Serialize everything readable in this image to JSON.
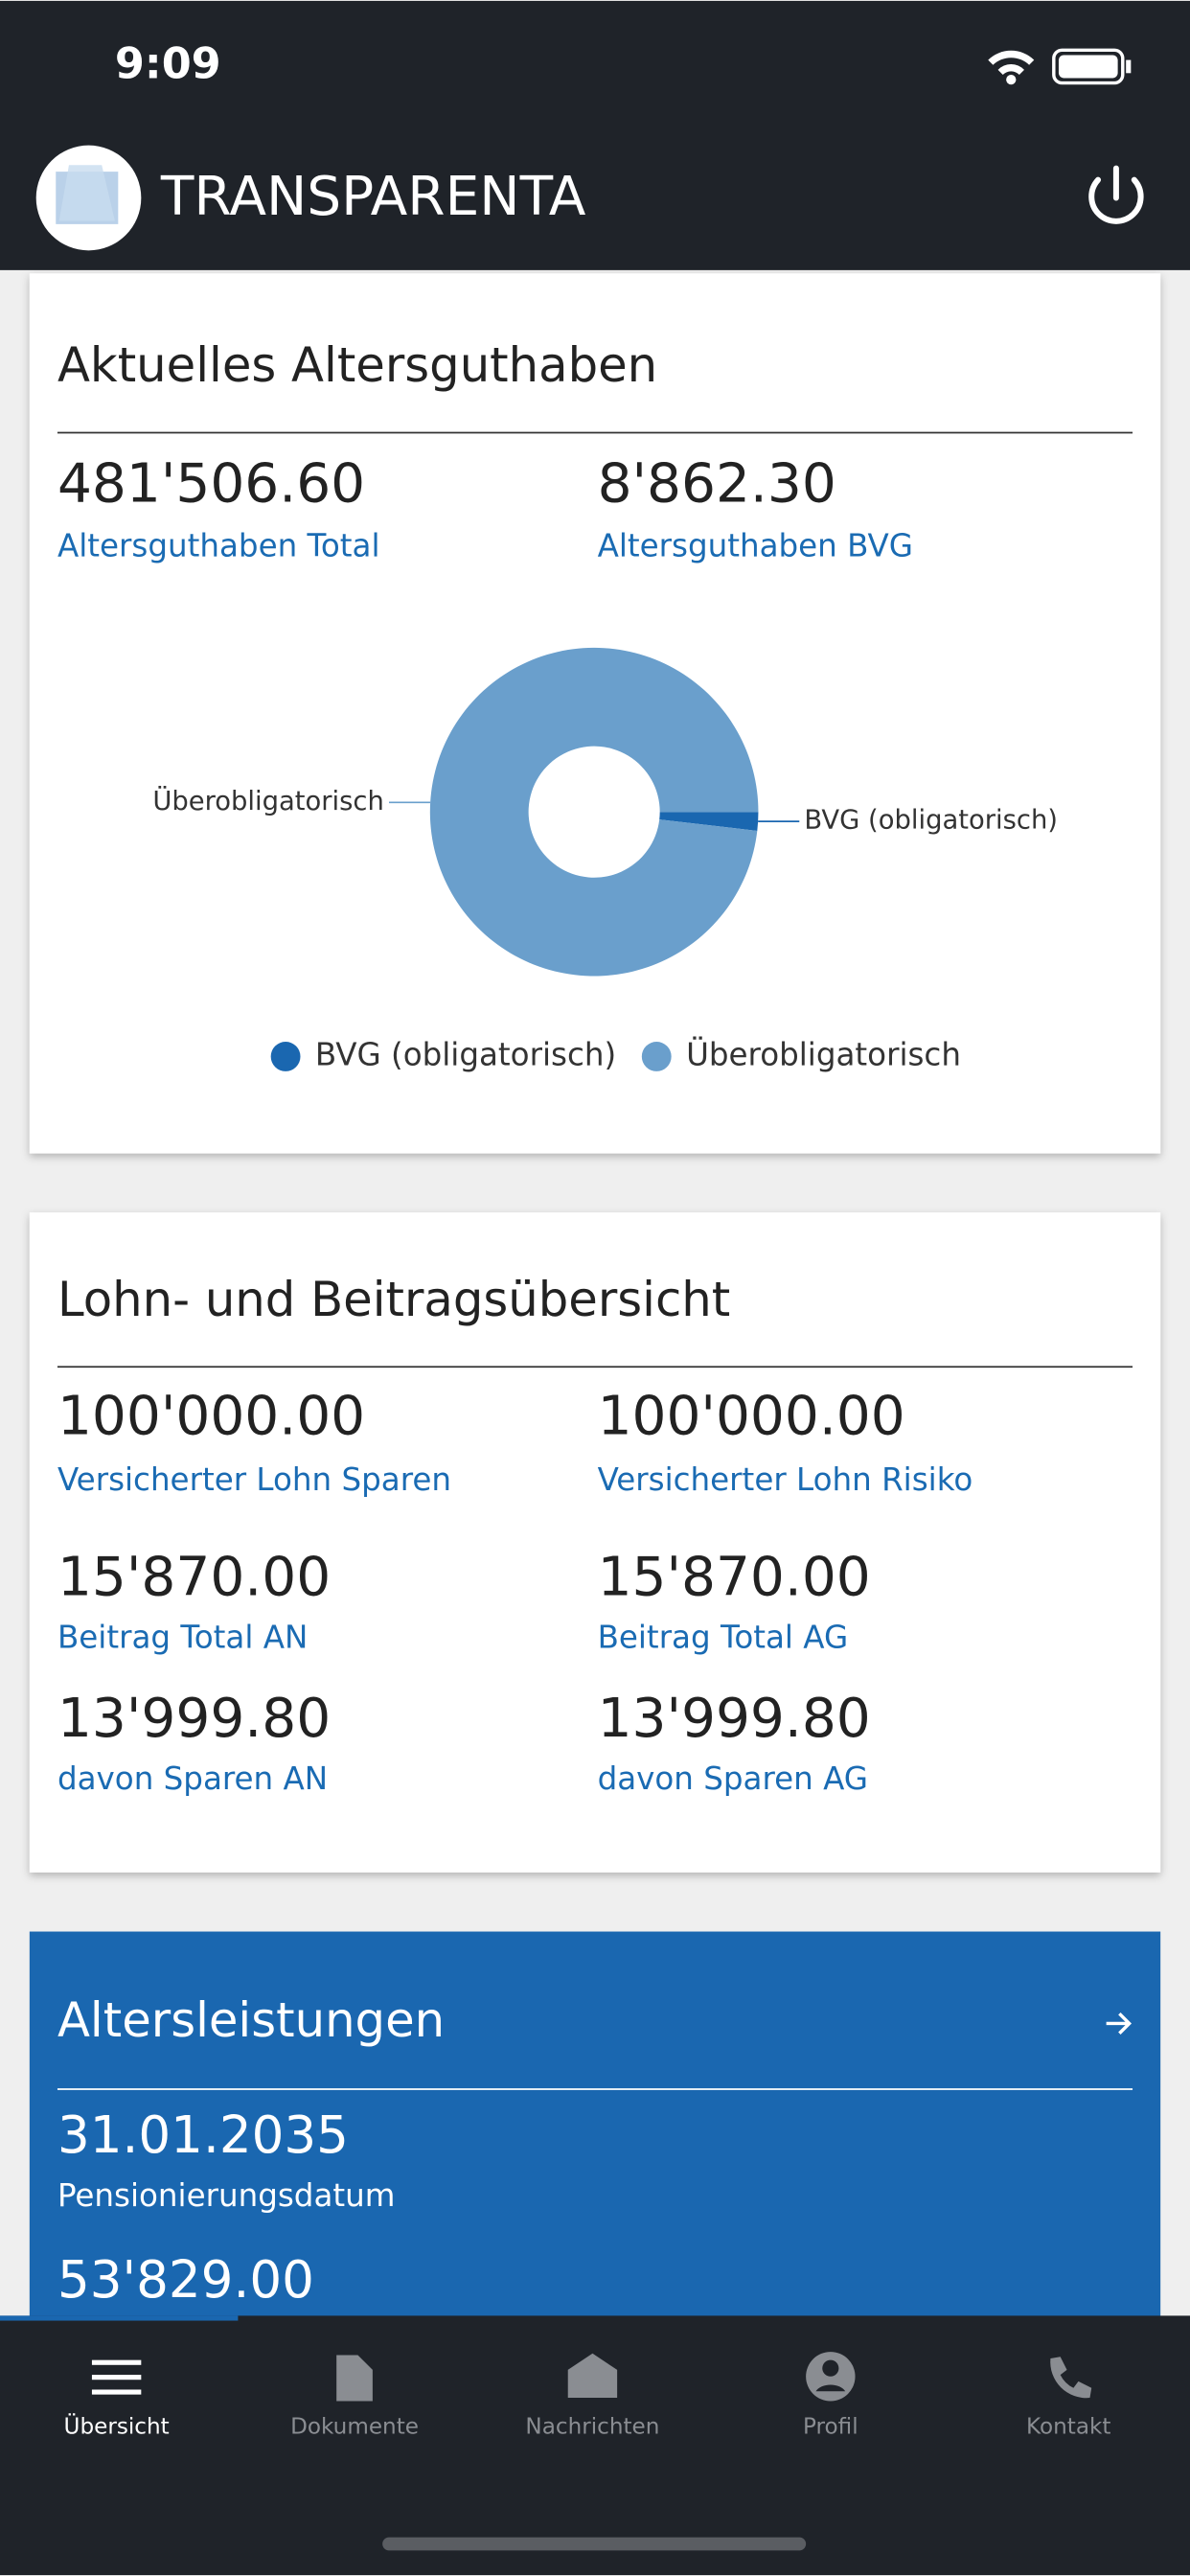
{
  "status": {
    "time": "9:09"
  },
  "header": {
    "title": "TRANSPARENTA"
  },
  "cards": [
    {
      "title": "Aktuelles Altersguthaben",
      "fields": [
        {
          "value": "481'506.60",
          "label": "Altersguthaben Total"
        },
        {
          "value": "8'862.30",
          "label": "Altersguthaben BVG"
        }
      ],
      "chart": {
        "type": "pie",
        "donut": true,
        "categories": [
          "BVG (obligatorisch)",
          "Überobligatorisch"
        ],
        "values": [
          8862.3,
          472644.3
        ],
        "colors": [
          "#1a67b0",
          "#6a9fcc"
        ]
      }
    },
    {
      "title": "Lohn- und Beitragsübersicht",
      "fields": [
        {
          "value": "100'000.00",
          "label": "Versicherter Lohn Sparen"
        },
        {
          "value": "100'000.00",
          "label": "Versicherter Lohn Risiko"
        },
        {
          "value": "15'870.00",
          "label": "Beitrag Total AN"
        },
        {
          "value": "15'870.00",
          "label": "Beitrag Total AG"
        },
        {
          "value": "13'999.80",
          "label": "davon Sparen AN"
        },
        {
          "value": "13'999.80",
          "label": "davon Sparen AG"
        }
      ]
    },
    {
      "title": "Altersleistungen",
      "fields": [
        {
          "value": "31.01.2035",
          "label": "Pensionierungsdatum"
        },
        {
          "value": "53'829.00"
        }
      ]
    }
  ],
  "nav": {
    "items": [
      "Übersicht",
      "Dokumente",
      "Nachrichten",
      "Profil",
      "Kontakt"
    ]
  }
}
